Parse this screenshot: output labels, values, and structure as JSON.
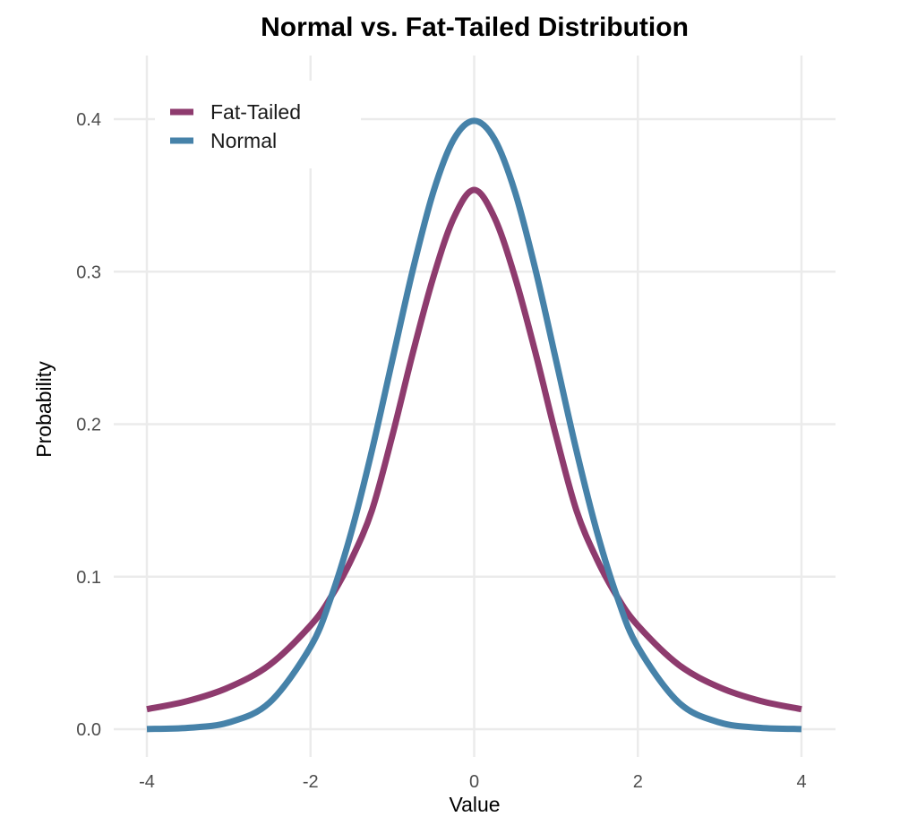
{
  "chart_data": {
    "type": "line",
    "title": "Normal vs. Fat-Tailed Distribution",
    "xlabel": "Value",
    "ylabel": "Probability",
    "xlim": [
      -4,
      4
    ],
    "ylim": [
      0,
      0.4
    ],
    "x_ticks": [
      -4,
      -2,
      0,
      2,
      4
    ],
    "x_tick_labels": [
      "-4",
      "-2",
      "0",
      "2",
      "4"
    ],
    "y_ticks": [
      0.0,
      0.1,
      0.2,
      0.3,
      0.4
    ],
    "y_tick_labels": [
      "0.0",
      "0.1",
      "0.2",
      "0.3",
      "0.4"
    ],
    "grid": true,
    "legend_position": "top-left",
    "x": [
      -4,
      -3.5,
      -3,
      -2.5,
      -2,
      -1.75,
      -1.5,
      -1.25,
      -1,
      -0.75,
      -0.5,
      -0.25,
      0,
      0.25,
      0.5,
      0.75,
      1,
      1.25,
      1.5,
      1.75,
      2,
      2.5,
      3,
      3.5,
      4
    ],
    "series": [
      {
        "name": "Fat-Tailed",
        "color": "#8e3b6e",
        "values": [
          0.0131,
          0.0185,
          0.0274,
          0.0422,
          0.068,
          0.0867,
          0.1114,
          0.1434,
          0.1925,
          0.2466,
          0.2962,
          0.3352,
          0.3536,
          0.3352,
          0.2962,
          0.2466,
          0.1925,
          0.1434,
          0.1114,
          0.0867,
          0.068,
          0.0422,
          0.0274,
          0.0185,
          0.0131
        ]
      },
      {
        "name": "Normal",
        "color": "#4682a9",
        "values": [
          0.0001,
          0.0009,
          0.0044,
          0.0175,
          0.054,
          0.0863,
          0.1295,
          0.1826,
          0.242,
          0.3011,
          0.3521,
          0.3867,
          0.3989,
          0.3867,
          0.3521,
          0.3011,
          0.242,
          0.1826,
          0.1295,
          0.0863,
          0.054,
          0.0175,
          0.0044,
          0.0009,
          0.0001
        ]
      }
    ]
  }
}
